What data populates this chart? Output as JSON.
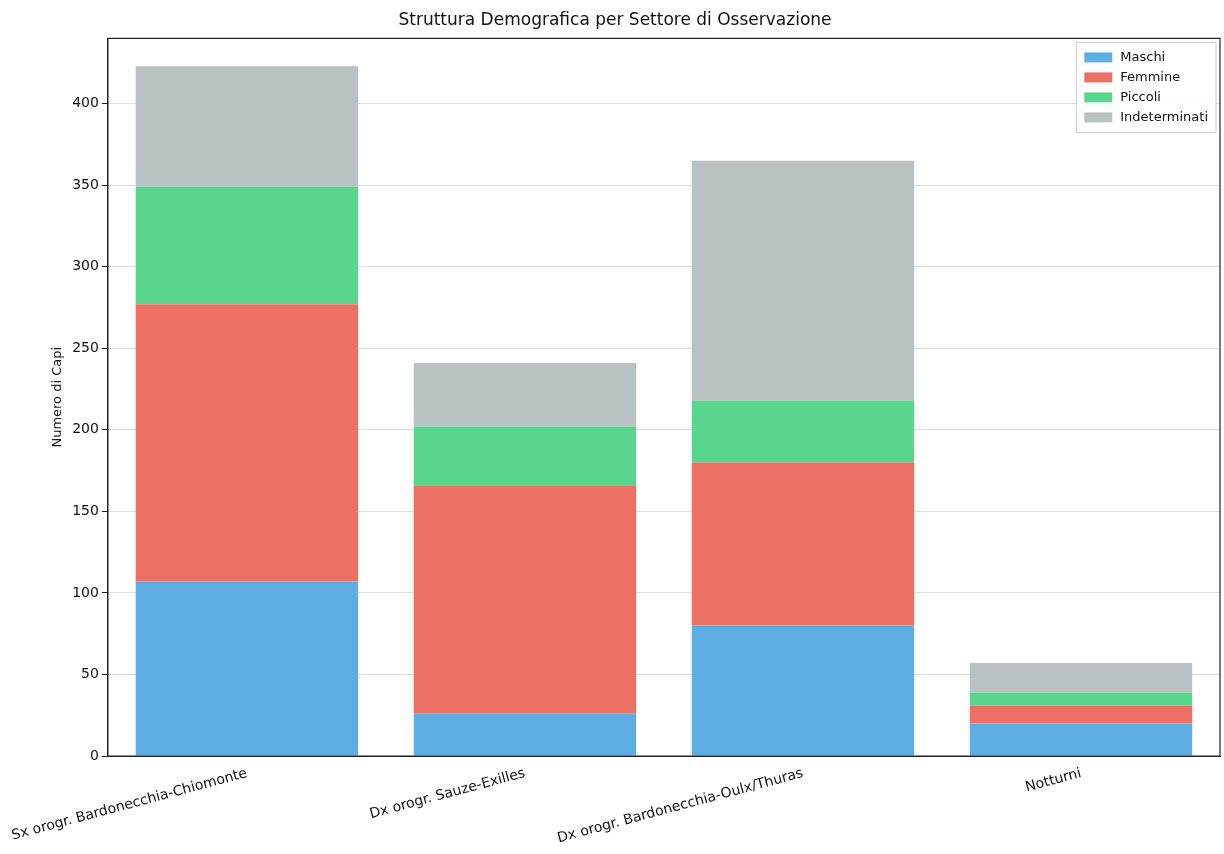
{
  "chart_data": {
    "type": "bar",
    "title": "Struttura Demografica per Settore di Osservazione",
    "ylabel": "Numero di Capi",
    "categories": [
      "Sx orogr. Bardonecchia-Chiomonte",
      "Dx orogr. Sauze-Exilles",
      "Dx orogr. Bardonecchia-Oulx/Thuras",
      "Notturni"
    ],
    "series": [
      {
        "name": "Maschi",
        "color": "#5dade2",
        "values": [
          107,
          26,
          80,
          20
        ]
      },
      {
        "name": "Femmine",
        "color": "#ec7063",
        "values": [
          170,
          140,
          100,
          11
        ]
      },
      {
        "name": "Piccoli",
        "color": "#58d68d",
        "values": [
          72,
          36,
          38,
          8
        ]
      },
      {
        "name": "Indeterminati",
        "color": "#bac1c3",
        "values": [
          74,
          39,
          147,
          18
        ]
      }
    ],
    "stacked": true,
    "ylim": [
      0,
      440
    ],
    "yticks": [
      0,
      50,
      100,
      150,
      200,
      250,
      300,
      350,
      400
    ],
    "grid": "y",
    "legend": "top right"
  }
}
